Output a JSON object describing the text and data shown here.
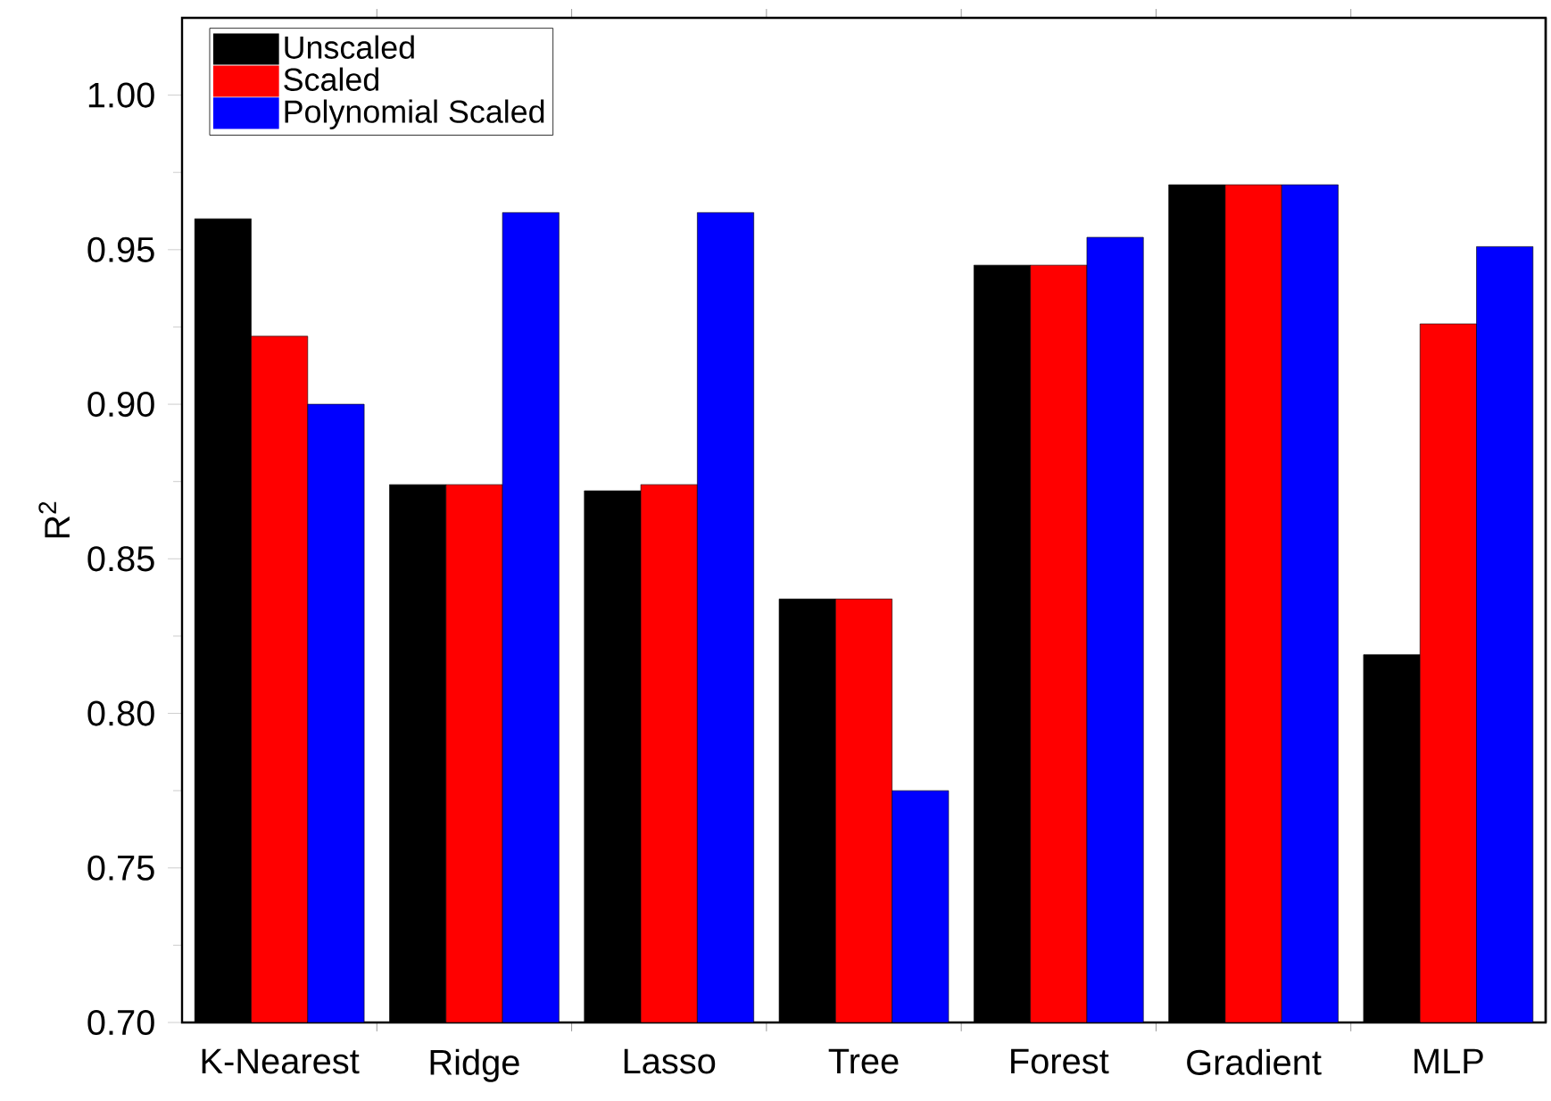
{
  "chart_data": {
    "type": "bar",
    "ylabel": "R$^{2}$",
    "categories": [
      "K-Nearest",
      "Ridge",
      "Lasso",
      "Tree",
      "Forest",
      "Gradient",
      "MLP"
    ],
    "series": [
      {
        "name": "Unscaled",
        "color": "#000000",
        "values": [
          0.96,
          0.874,
          0.872,
          0.837,
          0.945,
          0.971,
          0.819
        ]
      },
      {
        "name": "Scaled",
        "color": "#ff0000",
        "values": [
          0.922,
          0.874,
          0.874,
          0.837,
          0.945,
          0.971,
          0.926
        ]
      },
      {
        "name": "Polynomial Scaled",
        "color": "#0000ff",
        "values": [
          0.9,
          0.962,
          0.962,
          0.775,
          0.954,
          0.971,
          0.951
        ]
      }
    ],
    "ylim": [
      0.7,
      1.025
    ],
    "yticks": [
      {
        "value": 0.7,
        "label": "0.70"
      },
      {
        "value": 0.75,
        "label": "0.75"
      },
      {
        "value": 0.8,
        "label": "0.80"
      },
      {
        "value": 0.85,
        "label": "0.85"
      },
      {
        "value": 0.9,
        "label": "0.90"
      },
      {
        "value": 0.95,
        "label": "0.95"
      },
      {
        "value": 1.0,
        "label": "1.00"
      }
    ],
    "grid": false,
    "legend": "top left"
  }
}
